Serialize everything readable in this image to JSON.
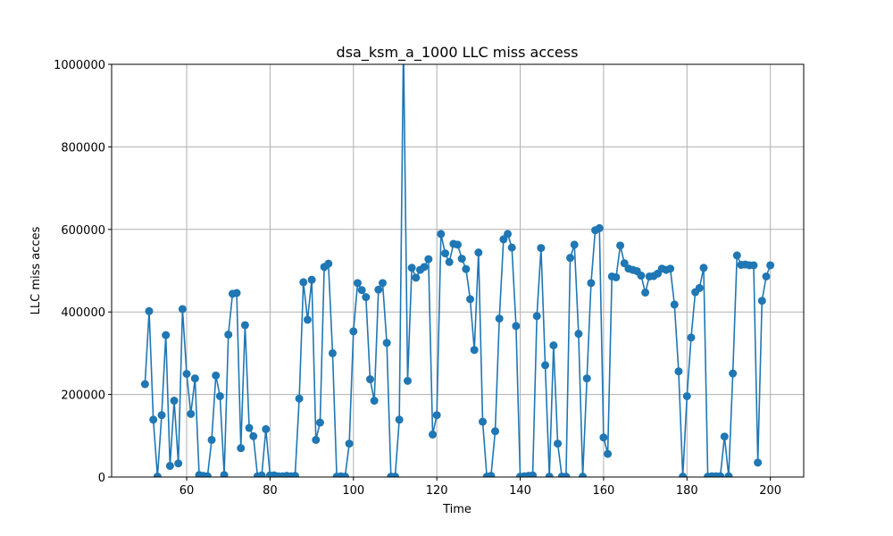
{
  "chart_data": {
    "type": "line",
    "title": "dsa_ksm_a_1000 LLC miss access",
    "xlabel": "Time",
    "ylabel": "LLC miss acces",
    "xlim": [
      42,
      208
    ],
    "ylim": [
      0,
      1000000
    ],
    "xticks": [
      60,
      80,
      100,
      120,
      140,
      160,
      180,
      200
    ],
    "yticks": [
      0,
      200000,
      400000,
      600000,
      800000,
      1000000
    ],
    "grid": true,
    "color": "#1f77b4",
    "marker": "circle",
    "series": [
      {
        "x": [
          50,
          51,
          52,
          53,
          54,
          55,
          56,
          57,
          58,
          59,
          60,
          61,
          62,
          63,
          64,
          65,
          66,
          67,
          68,
          69,
          70,
          71,
          72,
          73,
          74,
          75,
          76,
          77,
          78,
          79,
          80,
          81,
          82,
          83,
          84,
          85,
          86,
          87,
          88,
          89,
          90,
          91,
          92,
          93,
          94,
          95,
          96,
          97,
          98,
          99,
          100,
          101,
          102,
          103,
          104,
          105,
          106,
          107,
          108,
          109,
          110,
          111,
          112,
          113,
          114,
          115,
          116,
          117,
          118,
          119,
          120,
          121,
          122,
          123,
          124,
          125,
          126,
          127,
          128,
          129,
          130,
          131,
          132,
          133,
          134,
          135,
          136,
          137,
          138,
          139,
          140,
          141,
          142,
          143,
          144,
          145,
          146,
          147,
          148,
          149,
          150,
          151,
          152,
          153,
          154,
          155,
          156,
          157,
          158,
          159,
          160,
          161,
          162,
          163,
          164,
          165,
          166,
          167,
          168,
          169,
          170,
          171,
          172,
          173,
          174,
          175,
          176,
          177,
          178,
          179,
          180,
          181,
          182,
          183,
          184,
          185,
          186,
          187,
          188,
          189,
          190,
          191,
          192,
          193,
          194,
          195,
          196,
          197,
          198,
          199,
          200
        ],
        "y": [
          225000,
          402000,
          139000,
          1000,
          150000,
          344000,
          27000,
          185000,
          33000,
          407000,
          250000,
          153000,
          239000,
          5000,
          3000,
          2000,
          90000,
          246000,
          196000,
          5000,
          345000,
          444000,
          446000,
          70000,
          368000,
          119000,
          99000,
          2000,
          4000,
          116000,
          4000,
          4000,
          2000,
          2000,
          3000,
          2000,
          3000,
          190000,
          472000,
          381000,
          478000,
          90000,
          132000,
          509000,
          517000,
          300000,
          1000,
          2000,
          1000,
          81000,
          353000,
          470000,
          453000,
          436000,
          237000,
          185000,
          454000,
          470000,
          325000,
          1000,
          1000,
          139000,
          1050000,
          233000,
          507000,
          483000,
          502000,
          509000,
          528000,
          103000,
          150000,
          589000,
          542000,
          521000,
          565000,
          563000,
          529000,
          504000,
          431000,
          308000,
          544000,
          134000,
          1000,
          3000,
          111000,
          384000,
          576000,
          589000,
          556000,
          366000,
          1000,
          2000,
          3000,
          4000,
          390000,
          555000,
          271000,
          1000,
          319000,
          81000,
          1000,
          1000,
          531000,
          563000,
          347000,
          1000,
          239000,
          470000,
          598000,
          603000,
          96000,
          56000,
          486000,
          484000,
          561000,
          518000,
          505000,
          502000,
          499000,
          488000,
          447000,
          486000,
          487000,
          493000,
          505000,
          502000,
          505000,
          418000,
          256000,
          1000,
          196000,
          338000,
          448000,
          458000,
          507000,
          1000,
          2000,
          2000,
          2000,
          98000,
          2000,
          251000,
          537000,
          514000,
          515000,
          513000,
          513000,
          35000,
          427000,
          486000,
          513000
        ]
      }
    ]
  }
}
